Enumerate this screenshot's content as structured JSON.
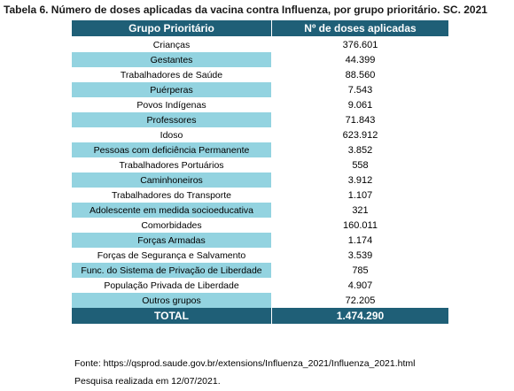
{
  "title": "Tabela 6. Número de doses aplicadas da vacina contra Influenza, por grupo prioritário. SC. 2021",
  "table": {
    "headers": [
      "Grupo Prioritário",
      "Nº de doses aplicadas"
    ],
    "rows": [
      {
        "group": "Crianças",
        "value": "376.601"
      },
      {
        "group": "Gestantes",
        "value": "44.399"
      },
      {
        "group": "Trabalhadores de Saúde",
        "value": "88.560"
      },
      {
        "group": "Puérperas",
        "value": "7.543"
      },
      {
        "group": "Povos Indígenas",
        "value": "9.061"
      },
      {
        "group": "Professores",
        "value": "71.843"
      },
      {
        "group": "Idoso",
        "value": "623.912"
      },
      {
        "group": "Pessoas com deficiência Permanente",
        "value": "3.852"
      },
      {
        "group": "Trabalhadores Portuários",
        "value": "558"
      },
      {
        "group": "Caminhoneiros",
        "value": "3.912"
      },
      {
        "group": "Trabalhadores do Transporte",
        "value": "1.107"
      },
      {
        "group": "Adolescente em medida socioeducativa",
        "value": "321"
      },
      {
        "group": "Comorbidades",
        "value": "160.011"
      },
      {
        "group": "Forças Armadas",
        "value": "1.174"
      },
      {
        "group": "Forças de Segurança e Salvamento",
        "value": "3.539"
      },
      {
        "group": "Func. do Sistema de Privação de Liberdade",
        "value": "785"
      },
      {
        "group": "População Privada de Liberdade",
        "value": "4.907"
      },
      {
        "group": "Outros grupos",
        "value": "72.205"
      }
    ],
    "total_label": "TOTAL",
    "total_value": "1.474.290"
  },
  "source": "Fonte: https://qsprod.saude.gov.br/extensions/Influenza_2021/Influenza_2021.html",
  "survey_date": "Pesquisa realizada em 12/07/2021.",
  "colors": {
    "header": "#1f5f77",
    "alt_row": "#93d3e0"
  }
}
